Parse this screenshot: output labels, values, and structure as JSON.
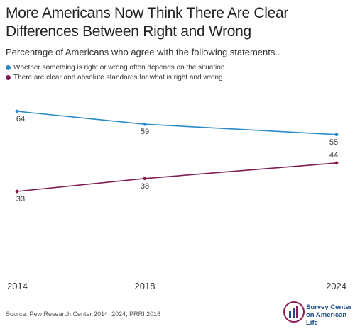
{
  "title": "More Americans Now Think There Are Clear Differences Between Right and Wrong",
  "subtitle": "Percentage of Americans who agree with the following statements..",
  "source": "Source: Pew Research Center 2014, 2024; PRRI 2018",
  "brand": {
    "line1": "Survey Center",
    "line2": "on American Life"
  },
  "chart_data": {
    "type": "line",
    "x": [
      "2014",
      "2018",
      "2024"
    ],
    "ylim": [
      0,
      100
    ],
    "grid": false,
    "legend_position": "top-left",
    "series": [
      {
        "name": "Whether something is right or wrong often depends on the situation",
        "color": "#2a8ac7",
        "values": [
          64,
          59,
          55
        ]
      },
      {
        "name": "There are clear and absolute standards for what is right and wrong",
        "color": "#7d1d52",
        "values": [
          33,
          38,
          44
        ]
      }
    ]
  }
}
